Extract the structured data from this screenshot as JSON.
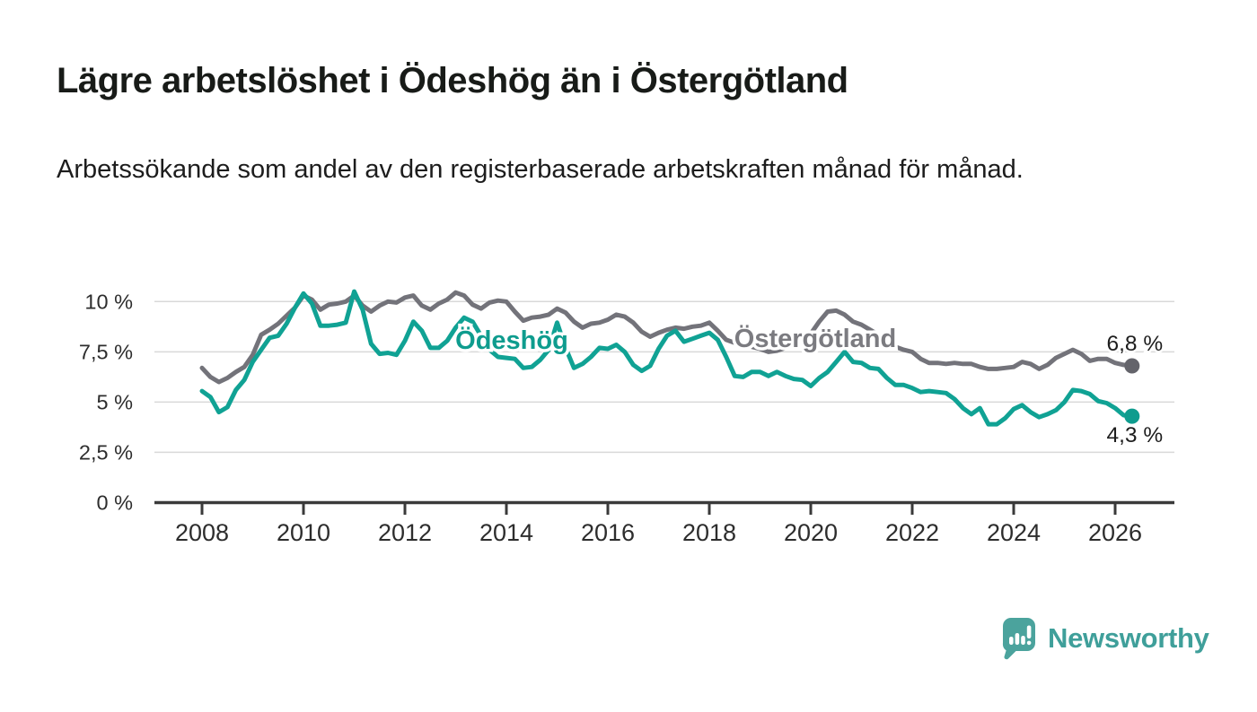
{
  "chart_data": {
    "type": "line",
    "title": "Lägre arbetslöshet i Ödeshög än i Östergötland",
    "subtitle": "Arbetssökande som andel av den registerbaserade arbetskraften månad för månad.",
    "x_start_year": 2008.0,
    "x_step_years": 0.166667,
    "xlim": [
      2007.06,
      2027.17
    ],
    "ylim": [
      0,
      10.85
    ],
    "grid": true,
    "legend": "inline-series-labels",
    "y_ticks": [
      {
        "value": 0,
        "label": "0 %"
      },
      {
        "value": 2.5,
        "label": "2,5 %"
      },
      {
        "value": 5,
        "label": "5 %"
      },
      {
        "value": 7.5,
        "label": "7,5 %"
      },
      {
        "value": 10,
        "label": "10 %"
      }
    ],
    "x_ticks": [
      {
        "year": 2008,
        "label": "2008"
      },
      {
        "year": 2010,
        "label": "2010"
      },
      {
        "year": 2012,
        "label": "2012"
      },
      {
        "year": 2014,
        "label": "2014"
      },
      {
        "year": 2016,
        "label": "2016"
      },
      {
        "year": 2018,
        "label": "2018"
      },
      {
        "year": 2020,
        "label": "2020"
      },
      {
        "year": 2022,
        "label": "2022"
      },
      {
        "year": 2024,
        "label": "2024"
      },
      {
        "year": 2026,
        "label": "2026"
      }
    ],
    "series": [
      {
        "id": "ostergotland",
        "name": "Östergötland",
        "color": "#73737a",
        "label_color": "#7b7b80",
        "dot_color": "#64646b",
        "end_value": 6.8,
        "end_label": "6,8 %",
        "values": [
          6.7,
          6.25,
          6.0,
          6.2,
          6.5,
          6.75,
          7.35,
          8.35,
          8.6,
          8.9,
          9.3,
          9.7,
          10.3,
          10.1,
          9.6,
          9.85,
          9.9,
          10.0,
          10.3,
          9.8,
          9.5,
          9.8,
          10.0,
          9.95,
          10.2,
          10.3,
          9.8,
          9.6,
          9.9,
          10.1,
          10.45,
          10.3,
          9.85,
          9.65,
          9.95,
          10.05,
          10.0,
          9.5,
          9.05,
          9.2,
          9.25,
          9.35,
          9.65,
          9.45,
          9.0,
          8.7,
          8.9,
          8.95,
          9.1,
          9.35,
          9.25,
          8.95,
          8.5,
          8.25,
          8.45,
          8.6,
          8.7,
          8.65,
          8.75,
          8.8,
          8.95,
          8.55,
          8.1,
          7.95,
          7.85,
          7.75,
          7.65,
          7.5,
          7.55,
          7.7,
          7.9,
          8.1,
          8.4,
          9.0,
          9.5,
          9.55,
          9.35,
          9.0,
          8.85,
          8.6,
          8.35,
          8.05,
          7.75,
          7.6,
          7.5,
          7.15,
          6.95,
          6.95,
          6.9,
          6.95,
          6.9,
          6.9,
          6.75,
          6.65,
          6.65,
          6.7,
          6.75,
          7.0,
          6.9,
          6.65,
          6.85,
          7.2,
          7.4,
          7.6,
          7.4,
          7.05,
          7.15,
          7.15,
          6.95,
          6.85,
          6.8
        ]
      },
      {
        "id": "odeshog",
        "name": "Ödeshög",
        "color": "#10a294",
        "label_color": "#0e9c8e",
        "dot_color": "#0e9c8e",
        "end_value": 4.3,
        "end_label": "4,3 %",
        "values": [
          5.55,
          5.25,
          4.5,
          4.75,
          5.6,
          6.1,
          7.0,
          7.6,
          8.2,
          8.3,
          8.9,
          9.7,
          10.4,
          9.9,
          8.8,
          8.8,
          8.85,
          8.95,
          10.5,
          9.6,
          7.9,
          7.4,
          7.45,
          7.35,
          8.05,
          9.0,
          8.55,
          7.7,
          7.7,
          8.05,
          8.7,
          9.2,
          9.0,
          8.3,
          7.6,
          7.25,
          7.2,
          7.15,
          6.7,
          6.75,
          7.1,
          7.6,
          8.95,
          7.7,
          6.7,
          6.9,
          7.25,
          7.7,
          7.65,
          7.85,
          7.5,
          6.85,
          6.55,
          6.8,
          7.65,
          8.3,
          8.55,
          8.0,
          8.15,
          8.3,
          8.45,
          8.1,
          7.25,
          6.3,
          6.25,
          6.5,
          6.5,
          6.3,
          6.5,
          6.3,
          6.15,
          6.1,
          5.8,
          6.2,
          6.5,
          7.0,
          7.5,
          7.0,
          6.95,
          6.7,
          6.65,
          6.2,
          5.85,
          5.85,
          5.7,
          5.5,
          5.55,
          5.5,
          5.45,
          5.15,
          4.7,
          4.4,
          4.7,
          3.9,
          3.9,
          4.2,
          4.65,
          4.85,
          4.5,
          4.25,
          4.4,
          4.6,
          5.0,
          5.6,
          5.55,
          5.4,
          5.05,
          4.95,
          4.7,
          4.35,
          4.3
        ]
      }
    ]
  },
  "branding": {
    "logo_text": "Newsworthy",
    "logo_text_color": "#3f9f9a",
    "logo_mark_color": "#4ba39d",
    "logo_mark_icon": "speech-bubble-bar-chart"
  }
}
